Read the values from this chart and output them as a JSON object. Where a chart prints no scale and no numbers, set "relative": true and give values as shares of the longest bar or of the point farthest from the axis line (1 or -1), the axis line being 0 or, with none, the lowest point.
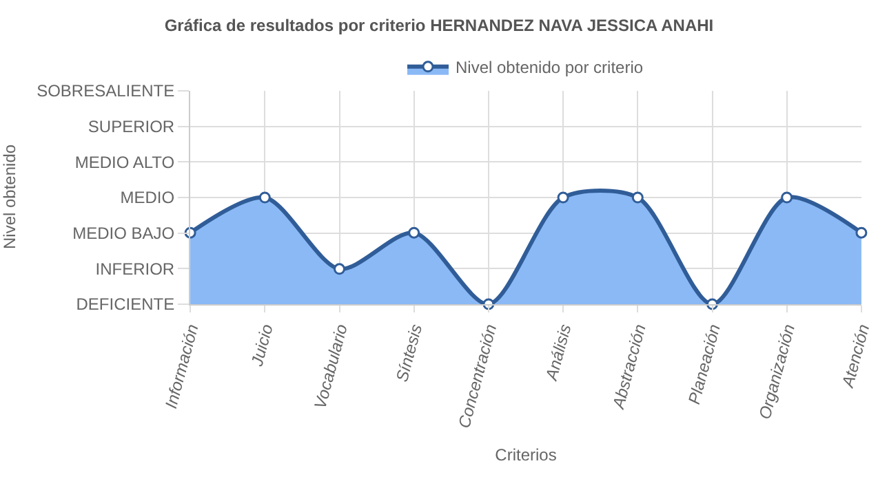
{
  "chart_data": {
    "type": "area",
    "title": "Gráfica de resultados por criterio HERNANDEZ NAVA JESSICA ANAHI",
    "xlabel": "Criterios",
    "annotations": [
      "Nivel obtenido"
    ],
    "categories": [
      "Información",
      "Juicio",
      "Vocabulario",
      "Síntesis",
      "Concentración",
      "Análisis",
      "Abstracción",
      "Planeación",
      "Organización",
      "Atención"
    ],
    "series": [
      {
        "name": "Nivel obtenido por criterio",
        "color": "#8ab9f5",
        "values": [
          0.67,
          1,
          0.33,
          0.67,
          0,
          1,
          1,
          0,
          1,
          0.67
        ]
      }
    ],
    "y_categories": [
      "SOBRESALIENTE",
      "SUPERIOR",
      "MEDIO ALTO",
      "MEDIO",
      "MEDIO BAJO",
      "INFERIOR",
      "DEFICIENTE"
    ],
    "relative": true,
    "grid": true,
    "legend": "top",
    "marker": "circle",
    "line_style": "solid"
  }
}
